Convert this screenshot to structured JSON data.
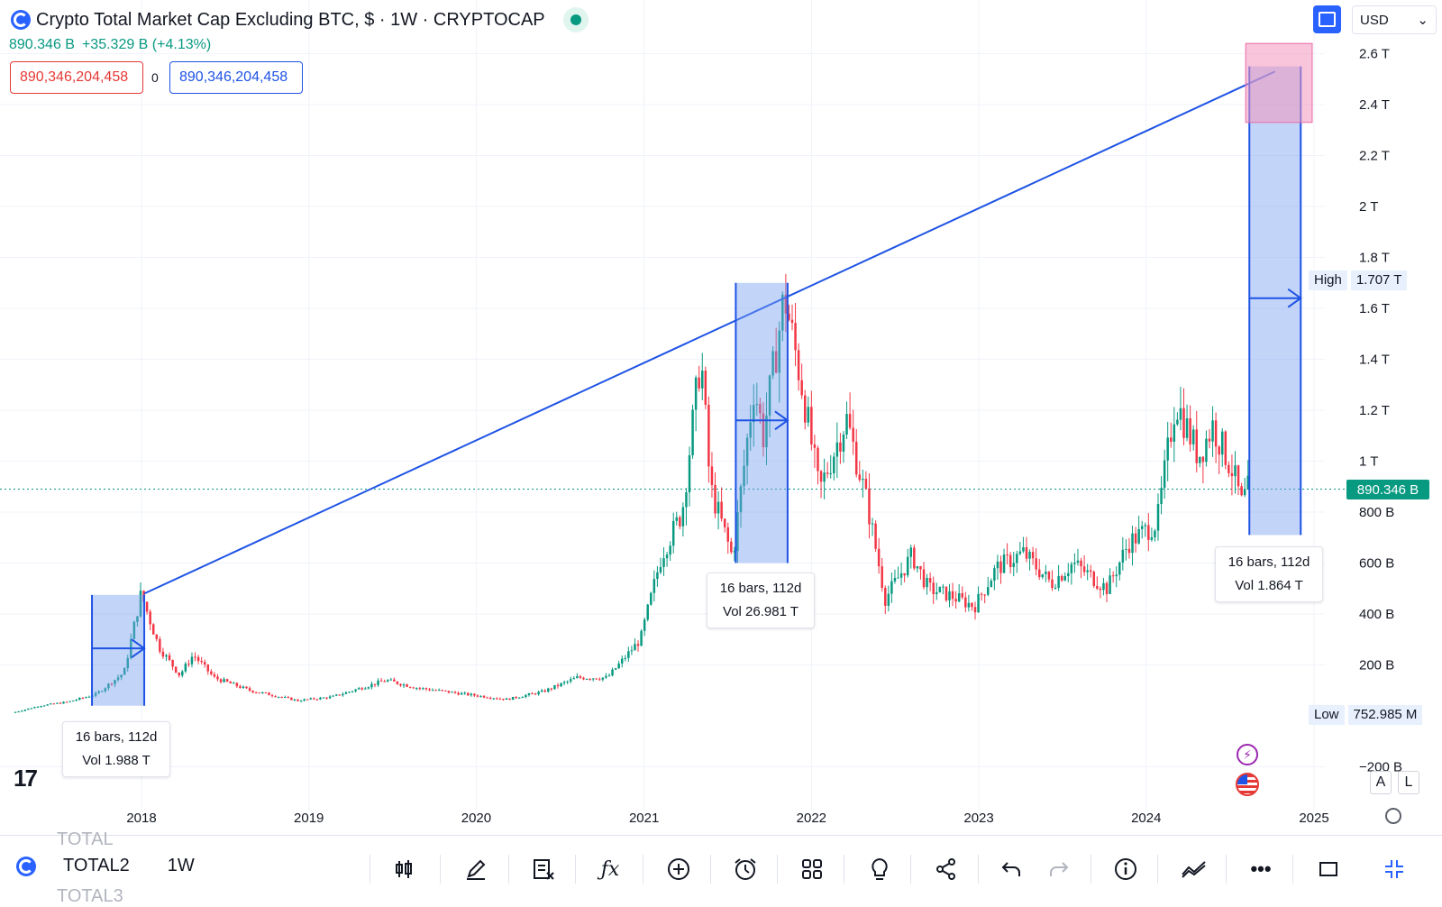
{
  "header": {
    "title": "Crypto Total Market Cap Excluding BTC, $ · 1W · CRYPTOCAP",
    "last": "890.346 B",
    "change": "+35.329 B (+4.13%)",
    "sell_price": "890,346,204,458",
    "spread": "0",
    "buy_price": "890,346,204,458",
    "currency": "USD",
    "currency_chevron": "⌄"
  },
  "colors": {
    "up": "#089981",
    "down": "#f23645",
    "drawing": "#1e53e5",
    "box": "#bcd0f7"
  },
  "price_axis": {
    "ticks": [
      "2.6 T",
      "2.4 T",
      "2.2 T",
      "2 T",
      "1.8 T",
      "1.6 T",
      "1.4 T",
      "1.2 T",
      "1 T",
      "800 B",
      "600 B",
      "400 B",
      "200 B",
      "−200 B"
    ],
    "current_label": "890.346 B",
    "high_label": "High",
    "high_value": "1.707 T",
    "low_label": "Low",
    "low_value": "752.985 M"
  },
  "time_axis": {
    "ticks": [
      "2018",
      "2019",
      "2020",
      "2021",
      "2022",
      "2023",
      "2024",
      "2025"
    ]
  },
  "chart_data": {
    "type": "candlestick",
    "title": "Crypto Total Market Cap Excluding BTC, $ · 1W · CRYPTOCAP",
    "xlabel": "",
    "ylabel": "",
    "unit": "USD (billions)",
    "x_range": [
      "2017-04-01",
      "2025-07-01"
    ],
    "ylim": [
      -300,
      2700
    ],
    "price_path_points": [
      [
        "2017-04-01",
        12
      ],
      [
        "2017-06-01",
        40
      ],
      [
        "2017-08-01",
        55
      ],
      [
        "2017-10-01",
        85
      ],
      [
        "2017-12-01",
        170
      ],
      [
        "2018-01-07",
        480
      ],
      [
        "2018-02-15",
        270
      ],
      [
        "2018-04-01",
        160
      ],
      [
        "2018-05-01",
        240
      ],
      [
        "2018-06-15",
        150
      ],
      [
        "2018-09-01",
        100
      ],
      [
        "2018-12-15",
        60
      ],
      [
        "2019-03-01",
        75
      ],
      [
        "2019-06-25",
        140
      ],
      [
        "2019-09-01",
        110
      ],
      [
        "2019-12-15",
        85
      ],
      [
        "2020-03-15",
        65
      ],
      [
        "2020-06-01",
        95
      ],
      [
        "2020-08-15",
        150
      ],
      [
        "2020-10-20",
        150
      ],
      [
        "2020-12-31",
        300
      ],
      [
        "2021-02-15",
        630
      ],
      [
        "2021-04-01",
        800
      ],
      [
        "2021-05-12",
        1420
      ],
      [
        "2021-06-01",
        900
      ],
      [
        "2021-07-20",
        620
      ],
      [
        "2021-09-05",
        1300
      ],
      [
        "2021-09-25",
        1100
      ],
      [
        "2021-11-10",
        1650
      ],
      [
        "2021-12-20",
        1280
      ],
      [
        "2022-01-25",
        880
      ],
      [
        "2022-03-25",
        1170
      ],
      [
        "2022-05-10",
        830
      ],
      [
        "2022-06-18",
        460
      ],
      [
        "2022-08-15",
        630
      ],
      [
        "2022-09-20",
        500
      ],
      [
        "2022-11-10",
        470
      ],
      [
        "2022-12-30",
        430
      ],
      [
        "2023-02-15",
        580
      ],
      [
        "2023-04-15",
        640
      ],
      [
        "2023-06-15",
        520
      ],
      [
        "2023-08-01",
        600
      ],
      [
        "2023-10-15",
        500
      ],
      [
        "2023-12-01",
        680
      ],
      [
        "2024-02-01",
        760
      ],
      [
        "2024-03-12",
        1240
      ],
      [
        "2024-05-01",
        1020
      ],
      [
        "2024-06-01",
        1140
      ],
      [
        "2024-07-15",
        960
      ],
      [
        "2024-08-05",
        820
      ],
      [
        "2024-08-14",
        890
      ]
    ],
    "high": 1707,
    "low": 0.753,
    "last": 890.346,
    "drawings": [
      {
        "type": "trend_line",
        "from": [
          "2018-01-07",
          480
        ],
        "to": [
          "2024-10-08",
          2530
        ]
      },
      {
        "type": "range",
        "from": "2017-09-15",
        "to": "2018-01-07",
        "price_range": [
          40,
          475
        ],
        "arrow_price": 265,
        "label": "16 bars, 112d",
        "volume": "Vol 1.988 T"
      },
      {
        "type": "range",
        "from": "2021-07-20",
        "to": "2021-11-10",
        "price_range": [
          600,
          1700
        ],
        "arrow_price": 1160,
        "label": "16 bars, 112d",
        "volume": "Vol 26.981 T"
      },
      {
        "type": "range",
        "from": "2024-08-13",
        "to": "2024-12-03",
        "price_range": [
          710,
          2550
        ],
        "arrow_price": 1640,
        "label": "16 bars, 112d",
        "volume": "Vol 1.864 T"
      },
      {
        "type": "rectangle",
        "from": "2024-08-05",
        "to": "2024-12-28",
        "price_range": [
          2330,
          2640
        ]
      }
    ]
  },
  "bottom": {
    "symbol": "TOTAL2",
    "symbol_above": "TOTAL",
    "symbol_below": "TOTAL3",
    "interval": "1W"
  },
  "scale_buttons": {
    "auto": "A",
    "log": "L"
  },
  "tv_logo": "17"
}
